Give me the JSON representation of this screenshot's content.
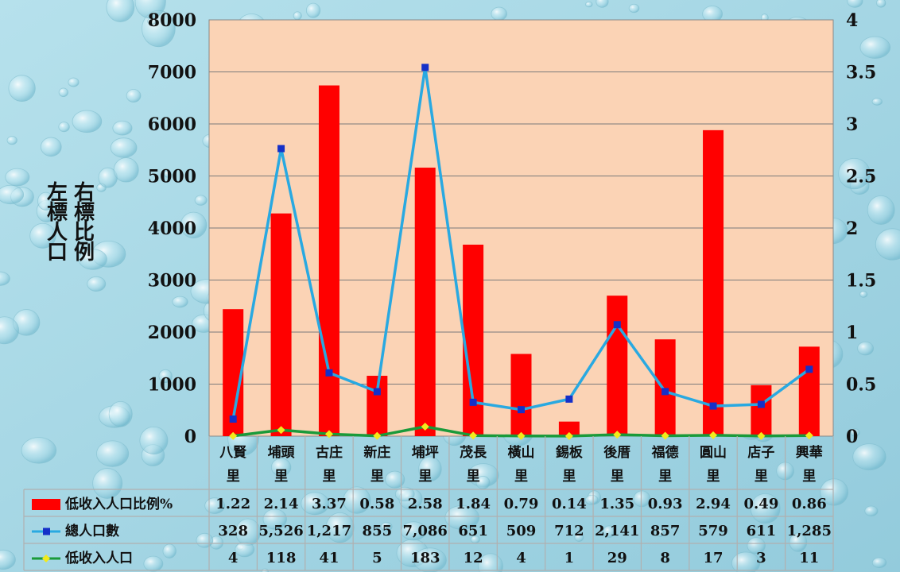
{
  "colors": {
    "plot_bg": "#fbd3b5",
    "bar": "#ff0000",
    "line_total": "#29a9e1",
    "marker_total": "#1530c8",
    "line_low": "#1a9a3a",
    "marker_low": "#f2ea1c",
    "grid": "#7a7a7a",
    "page_bg": "#a9d8e6"
  },
  "axis_notes": {
    "left": "左標人口",
    "right": "右標比例"
  },
  "table": {
    "row_labels": [
      "低收入人口比例%",
      "總人口數",
      "低收入人口"
    ],
    "row_values": [
      [
        "1.22",
        "2.14",
        "3.37",
        "0.58",
        "2.58",
        "1.84",
        "0.79",
        "0.14",
        "1.35",
        "0.93",
        "2.94",
        "0.49",
        "0.86"
      ],
      [
        "328",
        "5,526",
        "1,217",
        "855",
        "7,086",
        "651",
        "509",
        "712",
        "2,141",
        "857",
        "579",
        "611",
        "1,285"
      ],
      [
        "4",
        "118",
        "41",
        "5",
        "183",
        "12",
        "4",
        "1",
        "29",
        "8",
        "17",
        "3",
        "11"
      ]
    ]
  },
  "chart_data": {
    "type": "bar",
    "categories": [
      [
        "八賢",
        "里"
      ],
      [
        "埔頭",
        "里"
      ],
      [
        "古庄",
        "里"
      ],
      [
        "新庄",
        "里"
      ],
      [
        "埔坪",
        "里"
      ],
      [
        "茂長",
        "里"
      ],
      [
        "橫山",
        "里"
      ],
      [
        "錫板",
        "里"
      ],
      [
        "後厝",
        "里"
      ],
      [
        "福德",
        "里"
      ],
      [
        "圓山",
        "里"
      ],
      [
        "店子",
        "里"
      ],
      [
        "興華",
        "里"
      ]
    ],
    "left_ticks": [
      "0",
      "1000",
      "2000",
      "3000",
      "4000",
      "5000",
      "6000",
      "7000",
      "8000"
    ],
    "right_ticks": [
      "0",
      "0.5",
      "1",
      "1.5",
      "2",
      "2.5",
      "3",
      "3.5",
      "4"
    ],
    "ylim_left": [
      0,
      8000
    ],
    "ylim_right": [
      0,
      4
    ],
    "grid": true,
    "series": [
      {
        "name": "低收入人口比例%",
        "kind": "bar",
        "axis": "right",
        "values": [
          1.22,
          2.14,
          3.37,
          0.58,
          2.58,
          1.84,
          0.79,
          0.14,
          1.35,
          0.93,
          2.94,
          0.49,
          0.86
        ]
      },
      {
        "name": "總人口數",
        "kind": "line",
        "axis": "left",
        "values": [
          328,
          5526,
          1217,
          855,
          7086,
          651,
          509,
          712,
          2141,
          857,
          579,
          611,
          1285
        ]
      },
      {
        "name": "低收入人口",
        "kind": "line",
        "axis": "left",
        "values": [
          4,
          118,
          41,
          5,
          183,
          12,
          4,
          1,
          29,
          8,
          17,
          3,
          11
        ]
      }
    ],
    "legend": "table-bottom"
  }
}
